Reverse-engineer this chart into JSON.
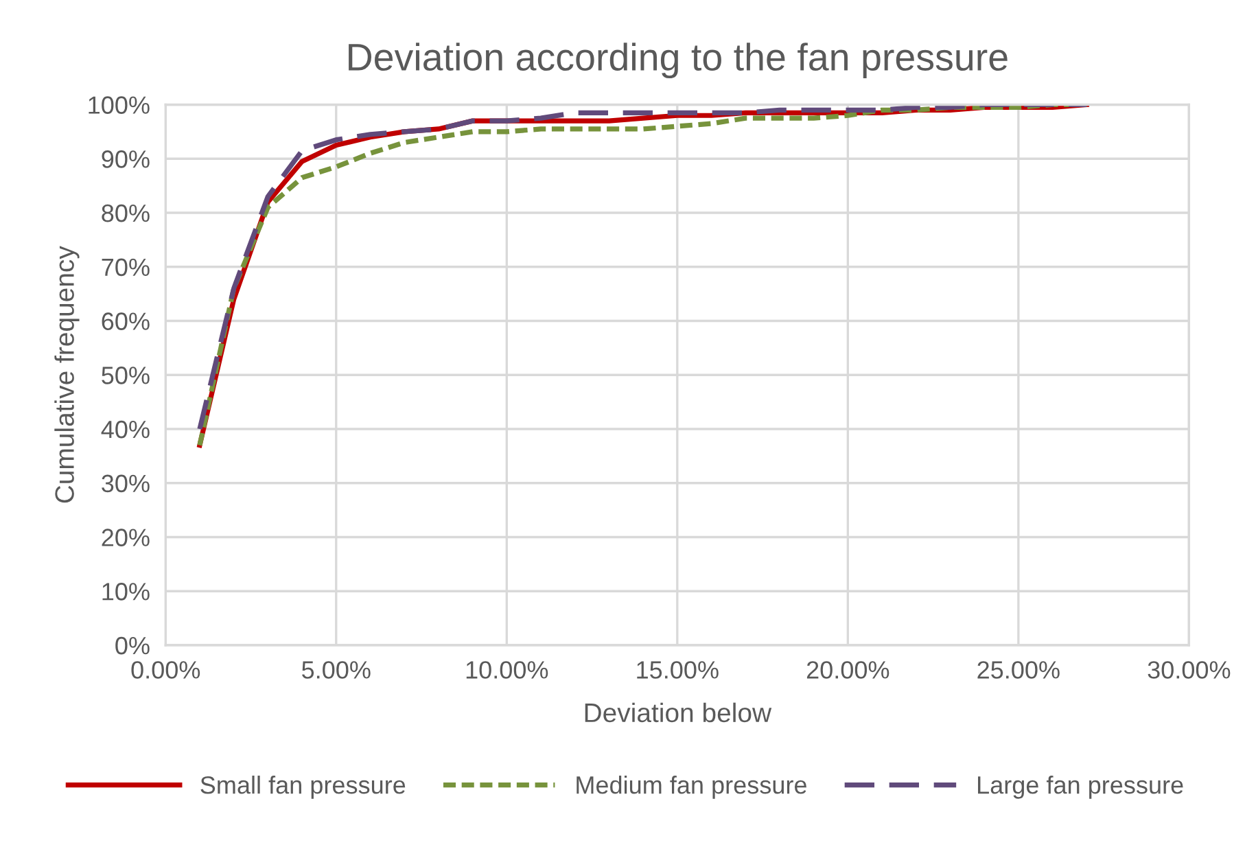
{
  "chart_data": {
    "type": "line",
    "title": "Deviation according to the fan pressure",
    "xlabel": "Deviation below",
    "ylabel": "Cumulative frequency",
    "x": [
      1,
      2,
      3,
      4,
      5,
      6,
      7,
      8,
      9,
      10,
      11,
      12,
      13,
      14,
      15,
      16,
      17,
      18,
      19,
      20,
      21,
      22,
      23,
      24,
      25,
      26,
      27
    ],
    "series": [
      {
        "name": "Small fan pressure",
        "color": "#c00000",
        "line_style": "solid",
        "values": [
          37,
          64,
          82,
          89.5,
          92.5,
          94,
          95,
          95.5,
          97,
          97,
          97,
          97,
          97,
          97.5,
          98,
          98,
          98.5,
          98.5,
          98.5,
          98.5,
          98.5,
          99,
          99,
          99.5,
          99.5,
          99.5,
          100
        ]
      },
      {
        "name": "Medium fan pressure",
        "color": "#77933c",
        "line_style": "dotted",
        "values": [
          37,
          66,
          81,
          86.5,
          88.5,
          91,
          93,
          94,
          95,
          95,
          95.5,
          95.5,
          95.5,
          95.5,
          96,
          96.5,
          97.5,
          97.5,
          97.5,
          98,
          99,
          99,
          99.5,
          99.5,
          99.5,
          100,
          100
        ]
      },
      {
        "name": "Large fan pressure",
        "color": "#604a7b",
        "line_style": "dashed",
        "values": [
          40,
          66,
          83,
          91.5,
          93.5,
          94.5,
          95,
          95.5,
          97,
          97,
          97.5,
          98.5,
          98.5,
          98.5,
          98.5,
          98.5,
          98.5,
          99,
          99,
          99,
          99,
          99.5,
          99.5,
          100,
          100,
          100,
          100
        ]
      }
    ],
    "xlim": [
      0,
      30
    ],
    "xticks": [
      {
        "value": 0,
        "label": "0.00%"
      },
      {
        "value": 5,
        "label": "5.00%"
      },
      {
        "value": 10,
        "label": "10.00%"
      },
      {
        "value": 15,
        "label": "15.00%"
      },
      {
        "value": 20,
        "label": "20.00%"
      },
      {
        "value": 25,
        "label": "25.00%"
      },
      {
        "value": 30,
        "label": "30.00%"
      }
    ],
    "ylim": [
      0,
      100
    ],
    "yticks": [
      {
        "value": 0,
        "label": "0%"
      },
      {
        "value": 10,
        "label": "10%"
      },
      {
        "value": 20,
        "label": "20%"
      },
      {
        "value": 30,
        "label": "30%"
      },
      {
        "value": 40,
        "label": "40%"
      },
      {
        "value": 50,
        "label": "50%"
      },
      {
        "value": 60,
        "label": "60%"
      },
      {
        "value": 70,
        "label": "70%"
      },
      {
        "value": 80,
        "label": "80%"
      },
      {
        "value": 90,
        "label": "90%"
      },
      {
        "value": 100,
        "label": "100%"
      }
    ],
    "grid": true,
    "legend": "bottom",
    "marker": "none"
  }
}
